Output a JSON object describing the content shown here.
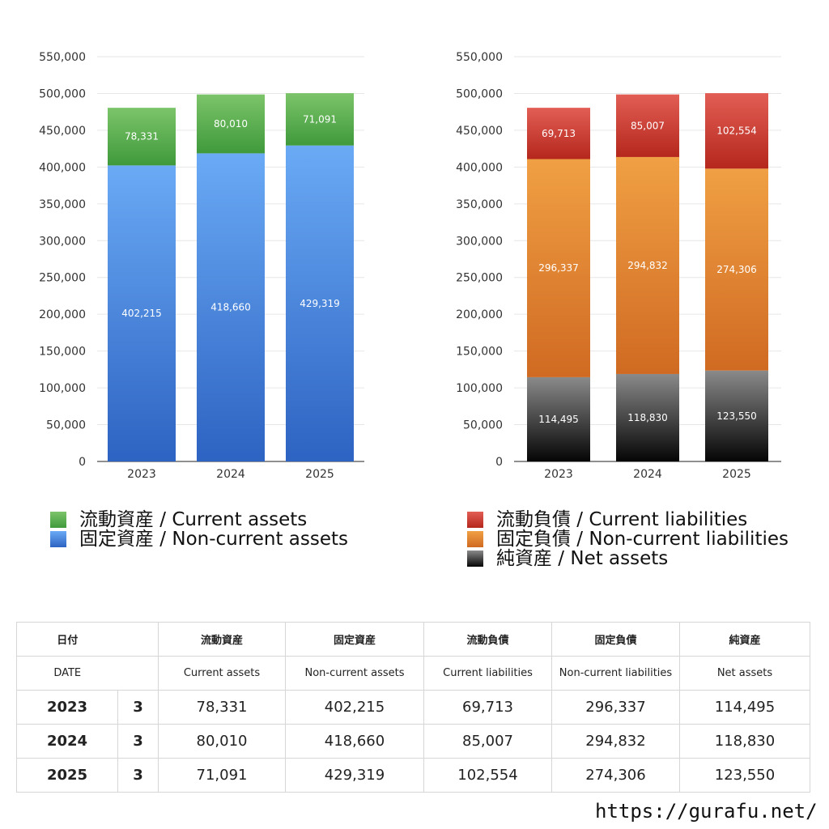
{
  "colors": {
    "current_assets": [
      "#7cc46a",
      "#3f9a3b"
    ],
    "non_current_assets": [
      "#6aaaf5",
      "#2d63c2"
    ],
    "current_liabilities": [
      "#e25e55",
      "#b5271c"
    ],
    "non_current_liabilities": [
      "#f0a044",
      "#d06a22"
    ],
    "net_assets": [
      "#8a8a8a",
      "#050505"
    ]
  },
  "chart_data": [
    {
      "type": "bar",
      "stacked": true,
      "categories": [
        "2023",
        "2024",
        "2025"
      ],
      "ylim": [
        0,
        550000
      ],
      "yticks": [
        0,
        50000,
        100000,
        150000,
        200000,
        250000,
        300000,
        350000,
        400000,
        450000,
        500000,
        550000
      ],
      "ytick_labels": [
        "0",
        "50,000",
        "100,000",
        "150,000",
        "200,000",
        "250,000",
        "300,000",
        "350,000",
        "400,000",
        "450,000",
        "500,000",
        "550,000"
      ],
      "grid": true,
      "series": [
        {
          "name": "固定資産 / Non-current assets",
          "key": "non_current_assets",
          "values": [
            402215,
            418660,
            429319
          ],
          "labels": [
            "402,215",
            "418,660",
            "429,319"
          ]
        },
        {
          "name": "流動資産 / Current assets",
          "key": "current_assets",
          "values": [
            78331,
            80010,
            71091
          ],
          "labels": [
            "78,331",
            "80,010",
            "71,091"
          ]
        }
      ],
      "legend": [
        {
          "name": "流動資産 / Current assets",
          "key": "current_assets"
        },
        {
          "name": "固定資産 / Non-current assets",
          "key": "non_current_assets"
        }
      ]
    },
    {
      "type": "bar",
      "stacked": true,
      "categories": [
        "2023",
        "2024",
        "2025"
      ],
      "ylim": [
        0,
        550000
      ],
      "yticks": [
        0,
        50000,
        100000,
        150000,
        200000,
        250000,
        300000,
        350000,
        400000,
        450000,
        500000,
        550000
      ],
      "ytick_labels": [
        "0",
        "50,000",
        "100,000",
        "150,000",
        "200,000",
        "250,000",
        "300,000",
        "350,000",
        "400,000",
        "450,000",
        "500,000",
        "550,000"
      ],
      "grid": true,
      "series": [
        {
          "name": "純資産 / Net assets",
          "key": "net_assets",
          "values": [
            114495,
            118830,
            123550
          ],
          "labels": [
            "114,495",
            "118,830",
            "123,550"
          ]
        },
        {
          "name": "固定負債 / Non-current liabilities",
          "key": "non_current_liabilities",
          "values": [
            296337,
            294832,
            274306
          ],
          "labels": [
            "296,337",
            "294,832",
            "274,306"
          ]
        },
        {
          "name": "流動負債 / Current liabilities",
          "key": "current_liabilities",
          "values": [
            69713,
            85007,
            102554
          ],
          "labels": [
            "69,713",
            "85,007",
            "102,554"
          ]
        }
      ],
      "legend": [
        {
          "name": "流動負債 / Current liabilities",
          "key": "current_liabilities"
        },
        {
          "name": "固定負債 / Non-current liabilities",
          "key": "non_current_liabilities"
        },
        {
          "name": "純資産 / Net assets",
          "key": "net_assets"
        }
      ]
    }
  ],
  "table": {
    "header_jp": [
      "日付",
      "流動資産",
      "固定資産",
      "流動負債",
      "固定負債",
      "純資産"
    ],
    "header_en": [
      "DATE",
      "Current assets",
      "Non-current assets",
      "Current liabilities",
      "Non-current liabilities",
      "Net assets"
    ],
    "rows": [
      {
        "year": "2023",
        "month": "3",
        "current_assets": "78,331",
        "non_current_assets": "402,215",
        "current_liabilities": "69,713",
        "non_current_liabilities": "296,337",
        "net_assets": "114,495"
      },
      {
        "year": "2024",
        "month": "3",
        "current_assets": "80,010",
        "non_current_assets": "418,660",
        "current_liabilities": "85,007",
        "non_current_liabilities": "294,832",
        "net_assets": "118,830"
      },
      {
        "year": "2025",
        "month": "3",
        "current_assets": "71,091",
        "non_current_assets": "429,319",
        "current_liabilities": "102,554",
        "non_current_liabilities": "274,306",
        "net_assets": "123,550"
      }
    ]
  },
  "footer": {
    "url": "https://gurafu.net/"
  }
}
